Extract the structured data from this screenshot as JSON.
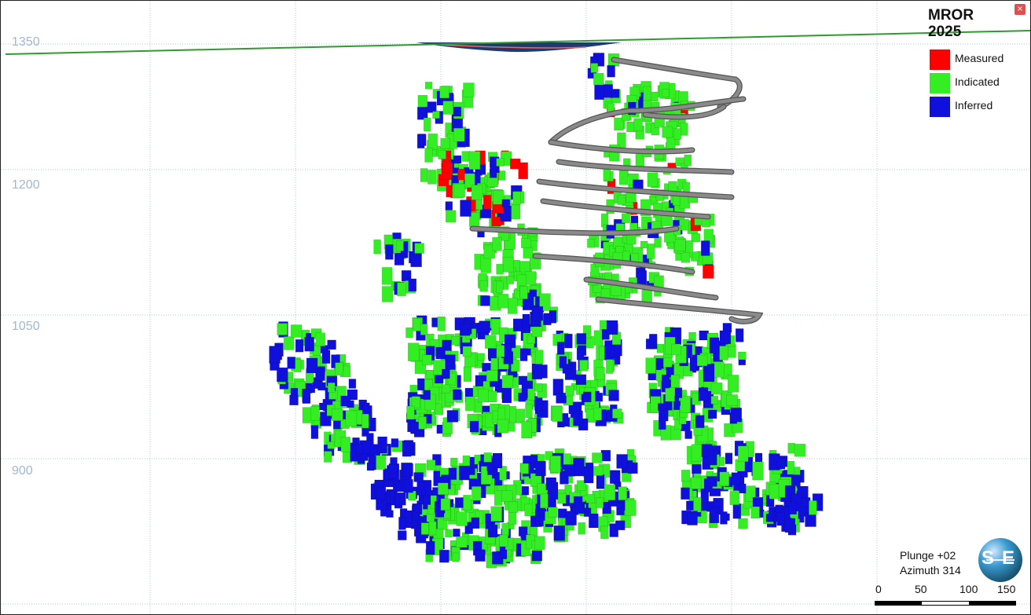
{
  "viewport": {
    "elevation_labels": [
      "1350",
      "1200",
      "1050",
      "900"
    ]
  },
  "legend": {
    "title": "MROR\n2025",
    "close_glyph": "×",
    "items": [
      {
        "label": "Measured",
        "color": "#ff0000"
      },
      {
        "label": "Indicated",
        "color": "#33ee22"
      },
      {
        "label": "Inferred",
        "color": "#1010dd"
      }
    ]
  },
  "orientation": {
    "plunge": "Plunge +02",
    "azimuth": "Azimuth 314",
    "compass_s": "S",
    "compass_e": "E"
  },
  "scale_bar": {
    "labels": [
      "0",
      "50",
      "100",
      "150"
    ]
  },
  "colors": {
    "grid": "#a9c4e8",
    "topography": "#2f9a2f",
    "development": "#8a8a8a",
    "pit": "#1e3a6e"
  }
}
